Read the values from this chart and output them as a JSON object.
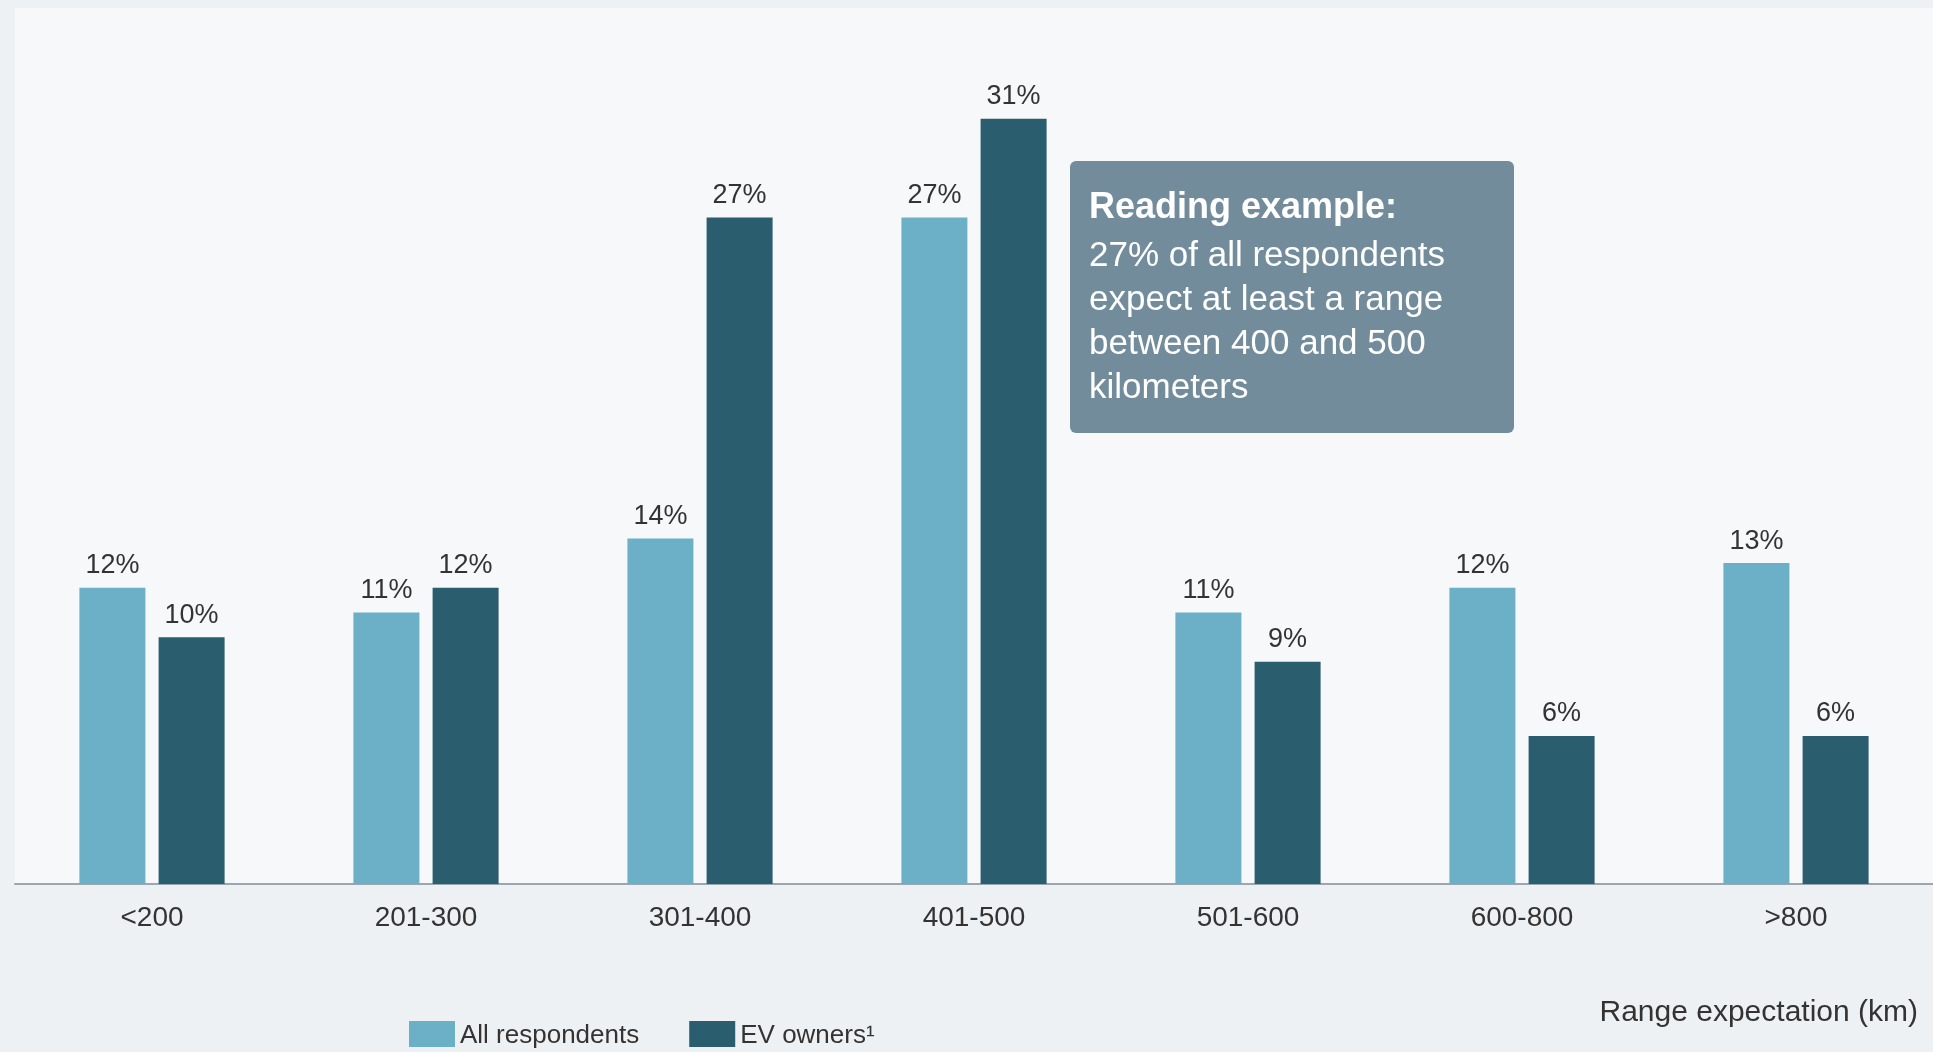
{
  "chart_data": {
    "type": "bar",
    "xlabel": "Range expectation (km)",
    "categories": [
      "<200",
      "201-300",
      "301-400",
      "401-500",
      "501-600",
      "600-800",
      ">800"
    ],
    "series": [
      {
        "name": "All respondents",
        "color": "#6cb0c8",
        "values": [
          12,
          11,
          14,
          27,
          11,
          12,
          13
        ],
        "value_labels": [
          "12%",
          "11%",
          "14%",
          "27%",
          "11%",
          "12%",
          "13%"
        ]
      },
      {
        "name": "EV owners¹",
        "color": "#2a5d6e",
        "values": [
          10,
          12,
          27,
          31,
          9,
          6,
          6
        ],
        "value_labels": [
          "10%",
          "12%",
          "27%",
          "31%",
          "9%",
          "6%",
          "6%"
        ]
      }
    ],
    "legend": "bottom left",
    "tick_labels": "x",
    "annotations": [
      "Reading example:",
      "27% of all respondents\nexpect at least a range\nbetween 400 and 500\nkilometers"
    ]
  }
}
